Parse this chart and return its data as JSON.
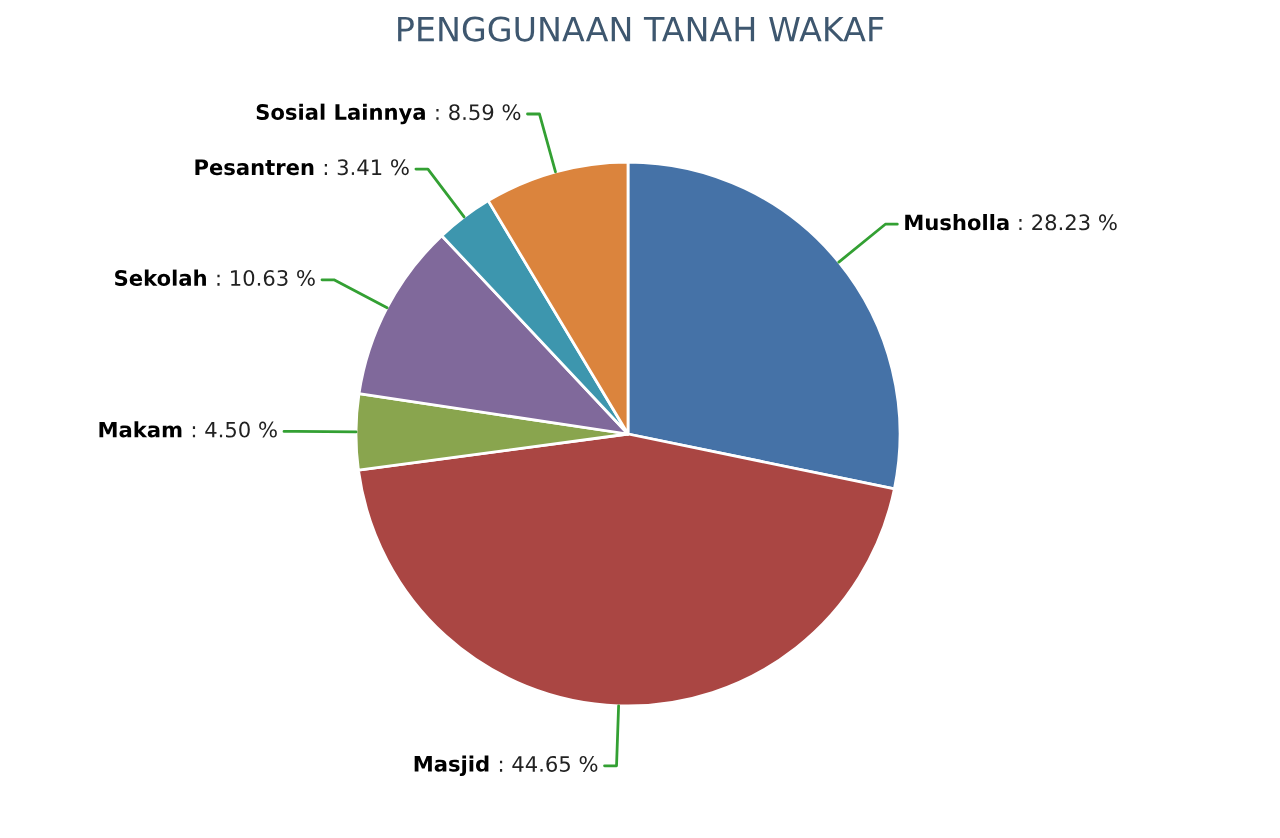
{
  "chart_data": {
    "type": "pie",
    "title": "PENGGUNAAN TANAH WAKAF",
    "categories": [
      "Musholla",
      "Masjid",
      "Makam",
      "Sekolah",
      "Pesantren",
      "Sosial Lainnya"
    ],
    "values": [
      28.23,
      44.65,
      4.5,
      10.63,
      3.41,
      8.59
    ],
    "value_labels": [
      ": 28.23 %",
      ": 44.65 %",
      ": 4.50 %",
      ": 10.63 %",
      ": 3.41 %",
      ": 8.59 %"
    ],
    "colors": [
      "#4572a7",
      "#aa4643",
      "#89a54e",
      "#80699b",
      "#3d96ae",
      "#db843d"
    ]
  }
}
